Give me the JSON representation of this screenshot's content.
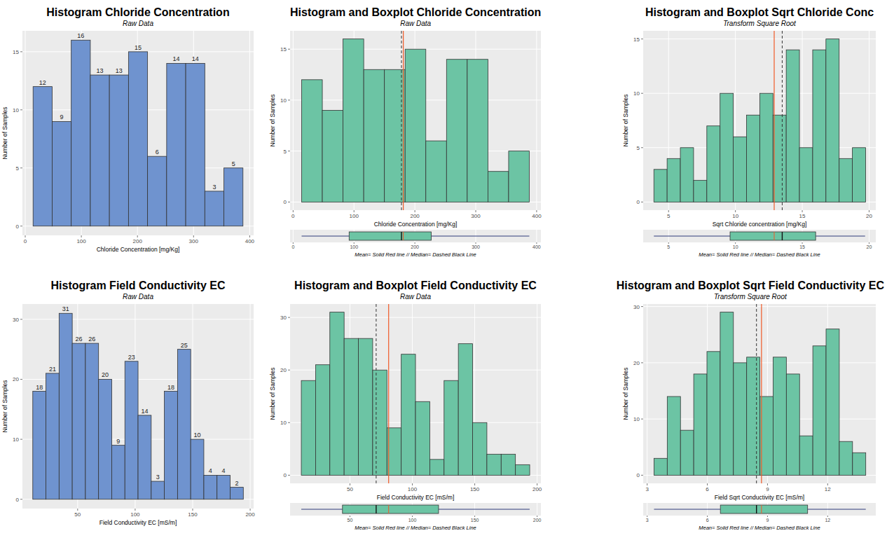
{
  "chart_data": [
    {
      "type": "histogram",
      "title": "Histogram Chloride Concentration",
      "subtitle": "Raw Data",
      "x_label": "Chloride Concentration [mg/Kg]",
      "y_label": "Number of Samples",
      "bins": [
        14,
        48,
        82,
        116,
        150,
        184,
        218,
        252,
        286,
        320,
        354,
        388
      ],
      "values": [
        12,
        9,
        16,
        13,
        13,
        15,
        6,
        14,
        14,
        3,
        5
      ],
      "color": "#6f93cf",
      "xlim": [
        -5,
        407
      ],
      "xticks": [
        0,
        100,
        200,
        300,
        400
      ],
      "ylim": [
        -0.8,
        16.8
      ],
      "yticks": [
        0,
        5,
        10,
        15
      ],
      "grid": true,
      "data_labels": true
    },
    {
      "type": "histogram",
      "title": "Histogram and Boxplot Chloride Concentration",
      "subtitle": "Raw Data",
      "x_label": "Chloride Concentration [mg/Kg]",
      "y_label": "Number of Samples",
      "bins": [
        14,
        48,
        82,
        116,
        150,
        184,
        218,
        252,
        286,
        320,
        354,
        388
      ],
      "values": [
        12,
        9,
        16,
        13,
        13,
        15,
        6,
        14,
        14,
        3,
        5
      ],
      "color": "#6cc4a4",
      "xlim": [
        -5,
        407
      ],
      "xticks": [
        0,
        100,
        200,
        300,
        400
      ],
      "ylim": [
        -0.8,
        16.8
      ],
      "yticks": [
        0,
        5,
        10,
        15
      ],
      "grid": true,
      "data_labels": false,
      "mean": 181,
      "median": 178,
      "boxplot": {
        "min": 14,
        "q1": 92,
        "q3": 227,
        "max": 388
      },
      "caption": "Mean= Solid Red line // Median= Dashed Black Line"
    },
    {
      "type": "histogram",
      "title": "Histogram and Boxplot Sqrt Chloride Conc",
      "subtitle": "Transform Square Root",
      "x_label": "Sqrt Chloride concentration [mg/Kg]",
      "y_label": "Number of Samples",
      "bins": [
        3.9,
        4.89,
        5.88,
        6.87,
        7.86,
        8.85,
        9.84,
        10.83,
        11.82,
        12.81,
        13.8,
        14.79,
        15.78,
        16.77,
        17.76,
        18.75,
        19.74
      ],
      "values": [
        3,
        4,
        5,
        2,
        7,
        10,
        6,
        8,
        10,
        8,
        14,
        5,
        14,
        15,
        4,
        5
      ],
      "color": "#6cc4a4",
      "xlim": [
        3.1,
        20.5
      ],
      "xticks": [
        5,
        10,
        15,
        20
      ],
      "ylim": [
        -0.75,
        15.75
      ],
      "yticks": [
        0,
        5,
        10,
        15
      ],
      "grid": true,
      "data_labels": false,
      "mean": 12.9,
      "median": 13.5,
      "boxplot": {
        "min": 3.9,
        "q1": 9.6,
        "q3": 16.0,
        "max": 19.7
      },
      "caption": "Mean= Solid Red line // Median= Dashed Black Line"
    },
    {
      "type": "histogram",
      "title": "Histogram Field Conductivity EC",
      "subtitle": "Raw Data",
      "x_label": "Field Conductivity EC [mS/m]",
      "y_label": "Number of Samples",
      "bins": [
        11,
        22.44,
        33.88,
        45.32,
        56.76,
        68.2,
        79.64,
        91.08,
        102.52,
        113.96,
        125.4,
        136.84,
        148.28,
        159.72,
        171.16,
        182.6,
        194.04
      ],
      "values": [
        18,
        21,
        31,
        26,
        26,
        20,
        9,
        23,
        14,
        3,
        18,
        25,
        10,
        4,
        4,
        2
      ],
      "color": "#6f93cf",
      "xlim": [
        2,
        203
      ],
      "xticks": [
        50,
        100,
        150,
        200
      ],
      "ylim": [
        -1.55,
        32.55
      ],
      "yticks": [
        0,
        10,
        20,
        30
      ],
      "grid": true,
      "data_labels": true
    },
    {
      "type": "histogram",
      "title": "Histogram and Boxplot Field Conductivity EC",
      "subtitle": "Raw Data",
      "x_label": "Field Conductivity EC [mS/m]",
      "y_label": "Number of Samples",
      "bins": [
        11,
        22.44,
        33.88,
        45.32,
        56.76,
        68.2,
        79.64,
        91.08,
        102.52,
        113.96,
        125.4,
        136.84,
        148.28,
        159.72,
        171.16,
        182.6,
        194.04
      ],
      "values": [
        18,
        21,
        31,
        26,
        26,
        20,
        9,
        23,
        14,
        3,
        18,
        25,
        10,
        4,
        4,
        2
      ],
      "color": "#6cc4a4",
      "xlim": [
        2,
        203
      ],
      "xticks": [
        50,
        100,
        150,
        200
      ],
      "ylim": [
        -1.55,
        32.55
      ],
      "yticks": [
        0,
        10,
        20,
        30
      ],
      "grid": true,
      "data_labels": false,
      "mean": 81,
      "median": 71,
      "boxplot": {
        "min": 11,
        "q1": 44,
        "q3": 121,
        "max": 194
      },
      "caption": "Mean= Solid Red line // Median= Dashed Black Line"
    },
    {
      "type": "histogram",
      "title": "Histogram and Boxplot Sqrt Field Conductivity EC",
      "subtitle": "Transform Square Root",
      "x_label": "Field Sqrt Conductivity EC [mS/m]",
      "y_label": "Number of Samples",
      "bins": [
        3.34,
        4.0,
        4.66,
        5.32,
        5.98,
        6.64,
        7.3,
        7.96,
        8.62,
        9.28,
        9.94,
        10.6,
        11.26,
        11.92,
        12.58,
        13.24,
        13.9
      ],
      "values": [
        3,
        14,
        8,
        18,
        22,
        29,
        20,
        21,
        14,
        21,
        18,
        7,
        23,
        26,
        6,
        4
      ],
      "color": "#6cc4a4",
      "xlim": [
        2.8,
        14.4
      ],
      "xticks": [
        3,
        6,
        9,
        12
      ],
      "ylim": [
        -1.45,
        30.45
      ],
      "yticks": [
        0,
        10,
        20,
        30
      ],
      "grid": true,
      "data_labels": false,
      "mean": 8.7,
      "median": 8.45,
      "boxplot": {
        "min": 3.34,
        "q1": 6.65,
        "q3": 11.0,
        "max": 13.9
      },
      "caption": "Mean= Solid Red line // Median= Dashed Black Line"
    }
  ]
}
